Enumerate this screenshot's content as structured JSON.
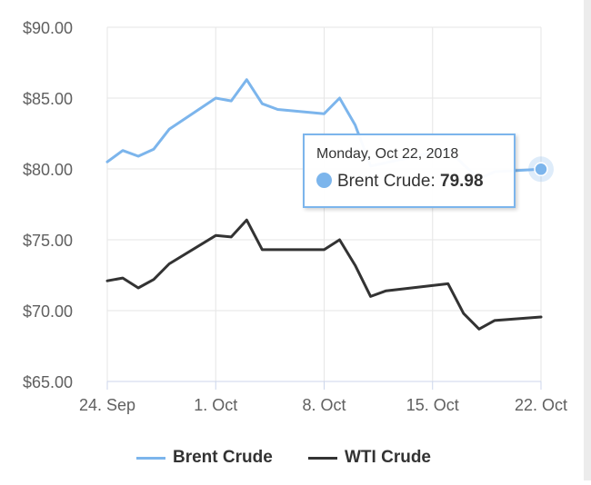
{
  "chart_data": {
    "type": "line",
    "title": "",
    "xlabel": "",
    "ylabel": "",
    "x_tick_labels": [
      "24. Sep",
      "1. Oct",
      "8. Oct",
      "15. Oct",
      "22. Oct"
    ],
    "y_tick_labels": [
      "$90.00",
      "$85.00",
      "$80.00",
      "$75.00",
      "$70.00",
      "$65.00"
    ],
    "ylim": [
      65,
      90
    ],
    "x_range": [
      "2018-09-24",
      "2018-10-22"
    ],
    "grid": true,
    "legend_position": "bottom",
    "series": [
      {
        "name": "Brent Crude",
        "color": "#7cb5ec",
        "points": [
          [
            "2018-09-24",
            80.5
          ],
          [
            "2018-09-25",
            81.3
          ],
          [
            "2018-09-26",
            80.9
          ],
          [
            "2018-09-27",
            81.4
          ],
          [
            "2018-09-28",
            82.8
          ],
          [
            "2018-10-01",
            85.0
          ],
          [
            "2018-10-02",
            84.8
          ],
          [
            "2018-10-03",
            86.3
          ],
          [
            "2018-10-04",
            84.6
          ],
          [
            "2018-10-05",
            84.2
          ],
          [
            "2018-10-08",
            83.9
          ],
          [
            "2018-10-09",
            85.0
          ],
          [
            "2018-10-10",
            83.1
          ],
          [
            "2018-10-11",
            80.2
          ],
          [
            "2018-10-16",
            81.4
          ],
          [
            "2018-10-17",
            80.3
          ],
          [
            "2018-10-18",
            79.3
          ],
          [
            "2018-10-19",
            79.8
          ],
          [
            "2018-10-22",
            79.98
          ]
        ]
      },
      {
        "name": "WTI Crude",
        "color": "#333333",
        "points": [
          [
            "2018-09-24",
            72.1
          ],
          [
            "2018-09-25",
            72.3
          ],
          [
            "2018-09-26",
            71.6
          ],
          [
            "2018-09-27",
            72.2
          ],
          [
            "2018-09-28",
            73.3
          ],
          [
            "2018-10-01",
            75.3
          ],
          [
            "2018-10-02",
            75.2
          ],
          [
            "2018-10-03",
            76.4
          ],
          [
            "2018-10-04",
            74.3
          ],
          [
            "2018-10-05",
            74.3
          ],
          [
            "2018-10-08",
            74.3
          ],
          [
            "2018-10-09",
            75.0
          ],
          [
            "2018-10-10",
            73.2
          ],
          [
            "2018-10-11",
            71.0
          ],
          [
            "2018-10-12",
            71.4
          ],
          [
            "2018-10-16",
            71.9
          ],
          [
            "2018-10-17",
            69.8
          ],
          [
            "2018-10-18",
            68.7
          ],
          [
            "2018-10-19",
            69.3
          ],
          [
            "2018-10-22",
            69.55
          ]
        ]
      }
    ]
  },
  "tooltip": {
    "date": "Monday, Oct 22, 2018",
    "series": "Brent Crude",
    "separator": ":",
    "value": "79.98"
  },
  "legend": [
    {
      "label": "Brent Crude",
      "color": "#7cb5ec"
    },
    {
      "label": "WTI Crude",
      "color": "#333333"
    }
  ]
}
